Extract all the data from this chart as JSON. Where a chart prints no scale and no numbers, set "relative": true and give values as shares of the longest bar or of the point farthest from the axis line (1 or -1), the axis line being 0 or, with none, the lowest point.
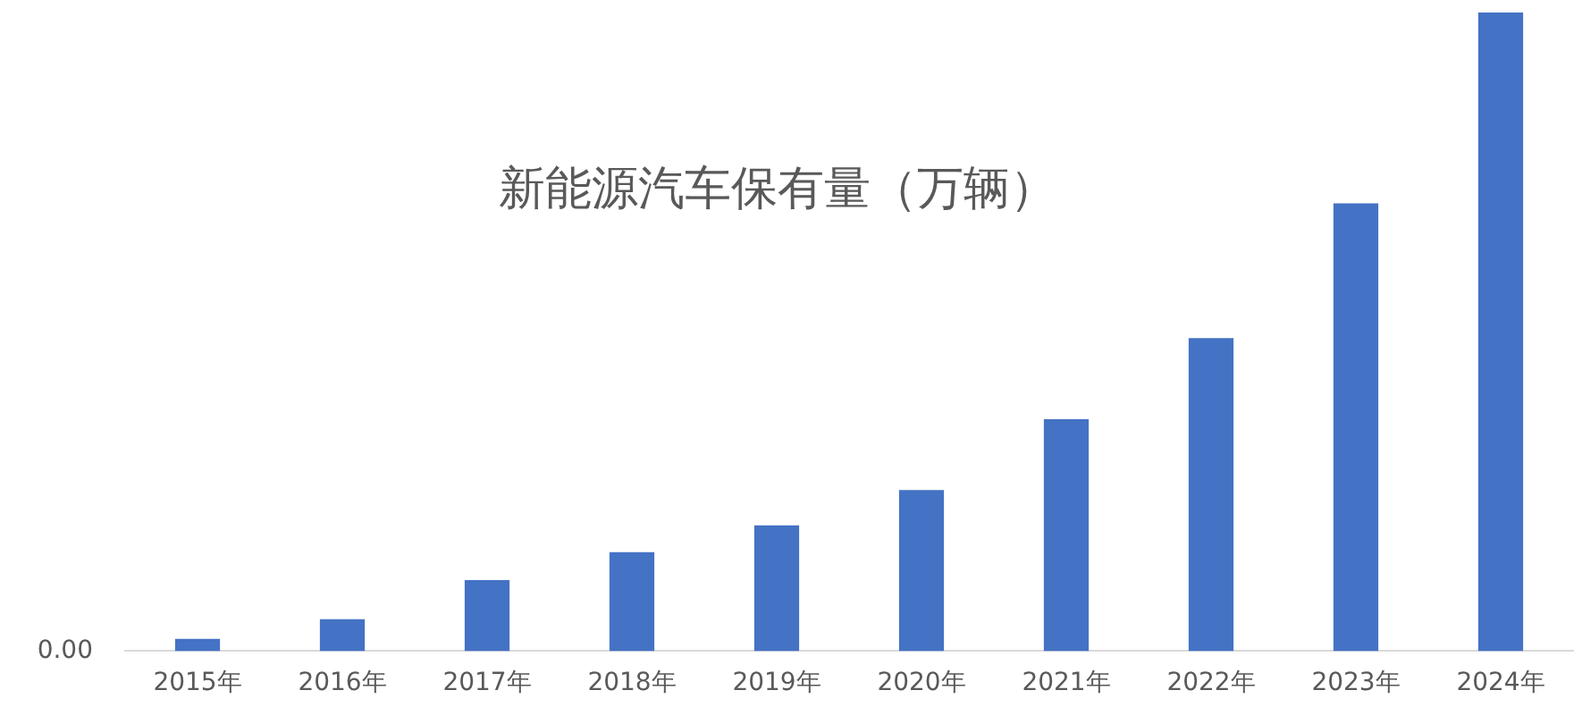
{
  "chart_data": {
    "type": "bar",
    "title": "新能源汽车保有量（万辆）",
    "categories": [
      "2015年",
      "2016年",
      "2017年",
      "2018年",
      "2019年",
      "2020年",
      "2021年",
      "2022年",
      "2023年",
      "2024年"
    ],
    "values": [
      0.019,
      0.05,
      0.111,
      0.155,
      0.197,
      0.252,
      0.363,
      0.49,
      0.701,
      1
    ],
    "color": "#4472c4",
    "relative": true,
    "grid": false,
    "legend": false,
    "annotations": [
      "0.00"
    ]
  }
}
